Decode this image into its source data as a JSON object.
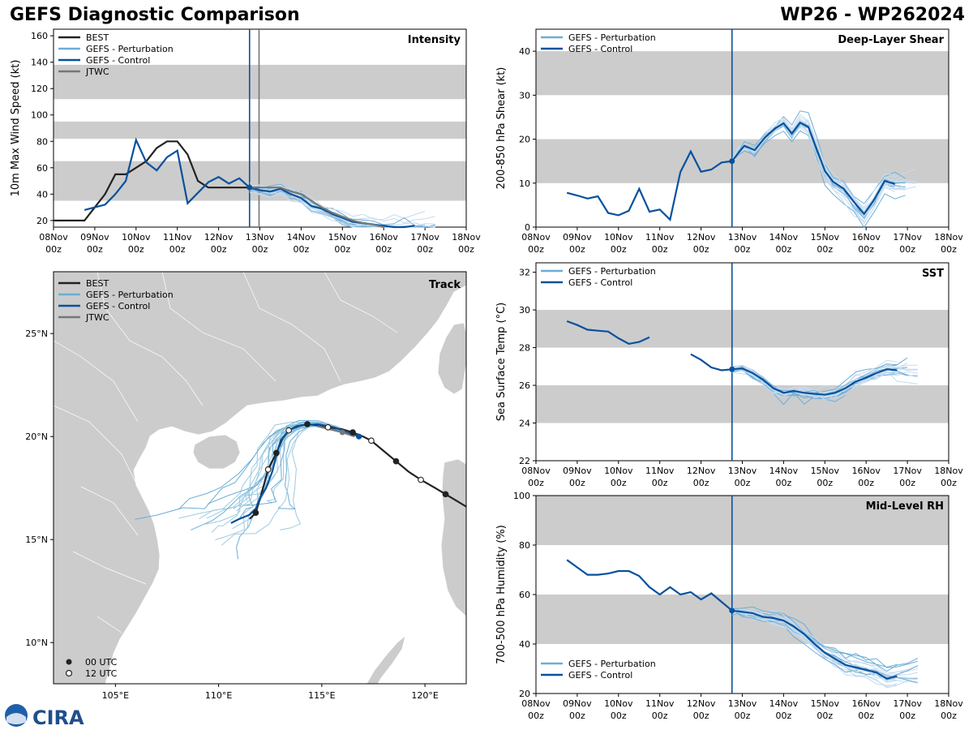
{
  "header": {
    "title_left": "GEFS Diagnostic Comparison",
    "title_right": "WP26 - WP262024"
  },
  "logo": {
    "text": "CIRA"
  },
  "colors": {
    "best": "#222222",
    "perturbation": "#6baed6",
    "perturbation_light": "#c6dbef",
    "control": "#08519c",
    "jtwc": "#777777",
    "band": "#cccccc",
    "land": "#cccccc"
  },
  "time_axis": {
    "day_labels": [
      "08Nov",
      "09Nov",
      "10Nov",
      "11Nov",
      "12Nov",
      "13Nov",
      "14Nov",
      "15Nov",
      "16Nov",
      "17Nov",
      "18Nov"
    ],
    "hour_label": "00z",
    "init_time_days": 4.75,
    "jtwc_time_days": 4.98
  },
  "chart_data": [
    {
      "id": "intensity",
      "type": "line",
      "title": "Intensity",
      "ylabel": "10m Max Wind Speed (kt)",
      "ylim": [
        15,
        165
      ],
      "xlim": [
        0,
        10
      ],
      "yticks": [
        20,
        40,
        60,
        80,
        100,
        120,
        140,
        160
      ],
      "bands": [
        [
          35,
          65
        ],
        [
          82,
          95
        ],
        [
          112,
          138
        ]
      ],
      "legend": [
        "BEST",
        "GEFS - Perturbation",
        "GEFS - Control",
        "JTWC"
      ],
      "series": [
        {
          "name": "BEST",
          "x": [
            0,
            0.25,
            0.5,
            0.75,
            1,
            1.25,
            1.5,
            1.75,
            2,
            2.25,
            2.5,
            2.75,
            3,
            3.25,
            3.5,
            3.75,
            4,
            4.25,
            4.5,
            4.75,
            5
          ],
          "values": [
            20,
            20,
            20,
            20,
            30,
            40,
            55,
            55,
            60,
            65,
            75,
            80,
            80,
            70,
            50,
            45,
            45,
            45,
            45,
            45,
            45
          ]
        },
        {
          "name": "GEFS - Control",
          "x": [
            0.75,
            1,
            1.25,
            1.5,
            1.75,
            2,
            2.25,
            2.5,
            2.75,
            3,
            3.25,
            3.5,
            3.75,
            4,
            4.25,
            4.5,
            4.75,
            5,
            5.25,
            5.5,
            5.75,
            6,
            6.25,
            6.5,
            6.75,
            7,
            7.25,
            7.5,
            7.75,
            8,
            8.25,
            8.5,
            8.75
          ],
          "values": [
            28,
            30,
            32,
            40,
            50,
            81,
            64,
            58,
            68,
            73,
            33,
            41,
            49,
            53,
            48,
            52,
            45,
            43,
            42,
            44,
            40,
            37,
            31,
            29,
            25,
            22,
            19,
            18,
            17,
            16,
            15,
            15,
            16
          ]
        },
        {
          "name": "JTWC",
          "x": [
            4.75,
            5,
            5.25,
            5.5,
            5.75,
            6,
            6.25,
            6.5,
            6.75,
            7,
            7.25,
            7.5,
            7.75,
            8
          ],
          "values": [
            45,
            45,
            45,
            45,
            42,
            40,
            35,
            30,
            26,
            23,
            20,
            18,
            17,
            15
          ]
        }
      ]
    },
    {
      "id": "shear",
      "type": "line",
      "title": "Deep-Layer Shear",
      "ylabel": "200-850 hPa Shear (kt)",
      "ylim": [
        0,
        45
      ],
      "xlim": [
        0,
        10
      ],
      "yticks": [
        0,
        10,
        20,
        30,
        40
      ],
      "bands": [
        [
          10,
          20
        ],
        [
          30,
          40
        ]
      ],
      "legend": [
        "GEFS - Perturbation",
        "GEFS - Control"
      ],
      "series": [
        {
          "name": "GEFS - Control",
          "x": [
            0.75,
            1,
            1.25,
            1.5,
            1.75,
            2,
            2.25,
            2.5,
            2.75,
            3,
            3.25,
            3.5,
            3.75,
            4,
            4.25,
            4.5,
            4.75
          ],
          "values": [
            7.8,
            7.2,
            6.5,
            7,
            3.2,
            2.7,
            3.7,
            8.7,
            3.5,
            4,
            1.7,
            12.5,
            17.2,
            12.6,
            13.1,
            14.7,
            15
          ]
        },
        {
          "name": "GEFS - Control (forecast)",
          "x": [
            4.75,
            4.9,
            5.05,
            5.3,
            5.55,
            5.8,
            6,
            6.2,
            6.4,
            6.6,
            6.8,
            7,
            7.2,
            7.45,
            7.7,
            7.95,
            8.2,
            8.45,
            8.7
          ],
          "values": [
            15,
            16.8,
            18.5,
            17.5,
            20.4,
            22.5,
            23.6,
            21.3,
            23.8,
            22.8,
            17.8,
            12.8,
            10.3,
            8.8,
            5.8,
            3,
            6.3,
            10.5,
            9.8
          ]
        }
      ]
    },
    {
      "id": "sst",
      "type": "line",
      "title": "SST",
      "ylabel": "Sea Surface Temp (°C)",
      "ylim": [
        22,
        32.5
      ],
      "xlim": [
        0,
        10
      ],
      "yticks": [
        22,
        24,
        26,
        28,
        30,
        32
      ],
      "bands": [
        [
          24,
          26
        ],
        [
          28,
          30
        ]
      ],
      "legend": [
        "GEFS - Perturbation",
        "GEFS - Control"
      ],
      "series": [
        {
          "name": "GEFS - Control",
          "x": [
            0.75,
            1,
            1.25,
            1.5,
            1.75,
            2,
            2.25,
            2.5,
            2.75
          ],
          "values": [
            29.4,
            29.2,
            28.95,
            28.9,
            28.85,
            28.5,
            28.2,
            28.3,
            28.55
          ]
        },
        {
          "name": "GEFS - Control (2)",
          "x": [
            3.75,
            4,
            4.25,
            4.5,
            4.75,
            5,
            5.25,
            5.5,
            5.75,
            6,
            6.25,
            6.5,
            6.75,
            7,
            7.25,
            7.5,
            7.75,
            8,
            8.25,
            8.5,
            8.75
          ],
          "values": [
            27.65,
            27.35,
            26.95,
            26.8,
            26.85,
            26.9,
            26.65,
            26.3,
            25.85,
            25.6,
            25.7,
            25.6,
            25.55,
            25.5,
            25.6,
            25.85,
            26.2,
            26.4,
            26.65,
            26.85,
            26.8
          ]
        }
      ]
    },
    {
      "id": "rh",
      "type": "line",
      "title": "Mid-Level RH",
      "ylabel": "700-500 hPa Humidity (%)",
      "ylim": [
        20,
        100
      ],
      "xlim": [
        0,
        10
      ],
      "yticks": [
        20,
        40,
        60,
        80,
        100
      ],
      "bands": [
        [
          40,
          60
        ],
        [
          80,
          100
        ]
      ],
      "legend": [
        "GEFS - Perturbation",
        "GEFS - Control"
      ],
      "series": [
        {
          "name": "GEFS - Control",
          "x": [
            0.75,
            1,
            1.25,
            1.5,
            1.75,
            2,
            2.25,
            2.5,
            2.75,
            3,
            3.25,
            3.5,
            3.75,
            4,
            4.25,
            4.5,
            4.75,
            5,
            5.25,
            5.5,
            5.75,
            6,
            6.25,
            6.5,
            6.75,
            7,
            7.25,
            7.5,
            7.75,
            8,
            8.25,
            8.5,
            8.75
          ],
          "values": [
            74,
            71,
            68,
            68,
            68.5,
            69.5,
            69.5,
            67.5,
            63,
            60,
            63,
            60,
            61,
            58,
            60.5,
            57,
            53.5,
            53,
            52.5,
            51,
            50.5,
            49.5,
            47,
            44,
            40,
            36.5,
            34,
            31.5,
            30.5,
            29.5,
            28.5,
            26,
            27
          ]
        }
      ]
    },
    {
      "id": "track",
      "type": "line",
      "title": "Track",
      "lon_ticks": [
        "105°E",
        "110°E",
        "115°E",
        "120°E"
      ],
      "lat_ticks": [
        "10°N",
        "15°N",
        "20°N",
        "25°N"
      ],
      "xlim": [
        102,
        122
      ],
      "ylim": [
        8,
        28
      ],
      "legend": [
        "BEST",
        "GEFS - Perturbation",
        "GEFS - Control",
        "JTWC"
      ],
      "marker_legend": [
        "00 UTC",
        "12 UTC"
      ],
      "series": [
        {
          "name": "BEST",
          "lon": [
            122,
            121.5,
            121,
            120.5,
            119.8,
            119.2,
            118.6,
            118,
            117.4,
            117,
            116.5,
            116,
            115.3,
            114.8,
            114.3,
            113.8,
            113.4,
            113.1,
            112.8,
            112.6,
            112.4,
            112.1,
            111.8,
            111.5
          ],
          "lat": [
            16.6,
            16.9,
            17.2,
            17.5,
            17.9,
            18.3,
            18.8,
            19.3,
            19.8,
            20.0,
            20.2,
            20.35,
            20.45,
            20.55,
            20.6,
            20.5,
            20.3,
            19.9,
            19.2,
            18.8,
            18.4,
            17.3,
            16.3,
            16.0
          ]
        },
        {
          "name": "GEFS - Control",
          "lon": [
            116.8,
            116.3,
            115.6,
            114.8,
            114.0,
            113.4,
            113.0,
            112.8,
            112.6,
            112.3,
            112.0,
            111.8,
            111.5,
            111.0,
            110.6
          ],
          "lat": [
            20.0,
            20.2,
            20.45,
            20.6,
            20.55,
            20.3,
            19.8,
            19.1,
            18.3,
            17.5,
            17.0,
            16.5,
            16.2,
            16.0,
            15.8
          ]
        },
        {
          "name": "JTWC",
          "lon": [
            116.6,
            116.0,
            115.4,
            114.8
          ],
          "lat": [
            20.0,
            20.2,
            20.35,
            20.5
          ]
        }
      ]
    }
  ]
}
